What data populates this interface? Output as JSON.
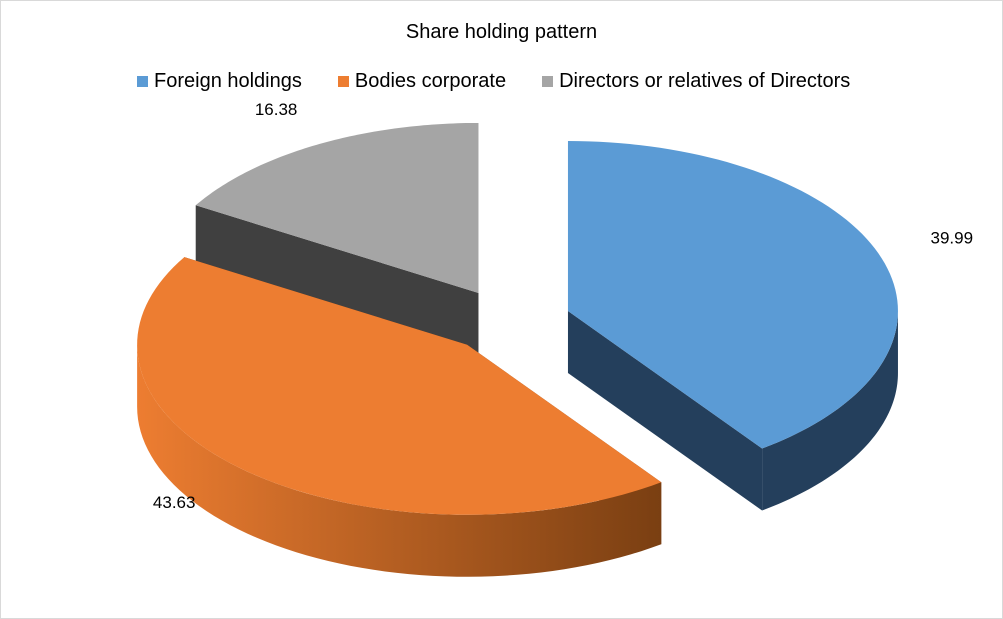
{
  "chart_data": {
    "type": "pie",
    "title": "Share holding pattern",
    "categories": [
      "Foreign holdings",
      "Bodies corporate",
      "Directors or relatives of Directors"
    ],
    "values": [
      39.99,
      43.63,
      16.38
    ],
    "colors": [
      "#5B9BD5",
      "#ED7D31",
      "#A5A5A5"
    ],
    "side_colors": [
      "#243F5C",
      "#7A3F12",
      "#404040"
    ],
    "legend_position": "top",
    "style": "3d-exploded"
  }
}
